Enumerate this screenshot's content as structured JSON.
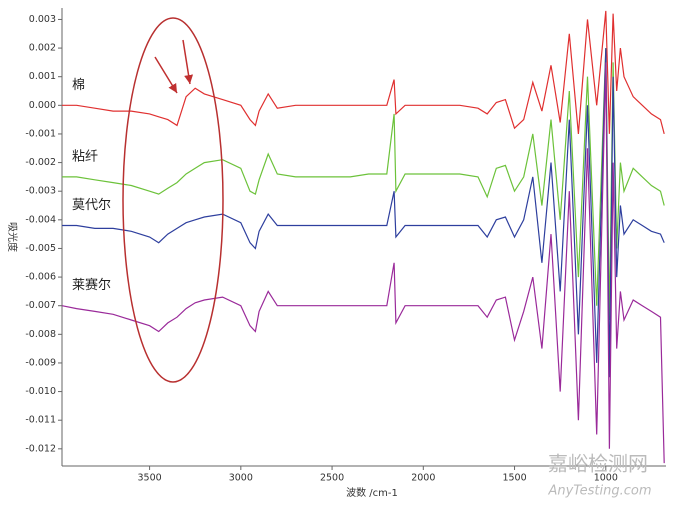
{
  "chart_data": {
    "type": "line",
    "xlabel": "波数 /cm-1",
    "ylabel": "吸光度",
    "x": [
      3980,
      3900,
      3800,
      3700,
      3600,
      3500,
      3450,
      3400,
      3350,
      3300,
      3250,
      3200,
      3100,
      3000,
      2950,
      2920,
      2900,
      2850,
      2800,
      2700,
      2600,
      2500,
      2400,
      2300,
      2200,
      2160,
      2150,
      2100,
      2000,
      1900,
      1800,
      1700,
      1650,
      1600,
      1550,
      1500,
      1450,
      1400,
      1350,
      1300,
      1250,
      1200,
      1150,
      1100,
      1050,
      1000,
      980,
      960,
      940,
      920,
      900,
      850,
      800,
      750,
      700,
      680
    ],
    "series": [
      {
        "name": "棉",
        "color": "#e03030",
        "values": [
          0.0,
          0.0,
          -0.0001,
          -0.0002,
          -0.0002,
          -0.0003,
          -0.0004,
          -0.0005,
          -0.0007,
          0.0003,
          0.0006,
          0.0004,
          0.0002,
          0.0,
          -0.0005,
          -0.0007,
          -0.0002,
          0.0004,
          -0.0001,
          0.0,
          0.0,
          0.0,
          0.0,
          0.0,
          0.0,
          0.0009,
          -0.0003,
          0.0,
          0.0,
          0.0,
          0.0,
          -0.0001,
          -0.0003,
          0.0001,
          0.0002,
          -0.0008,
          -0.0005,
          0.0008,
          -0.0002,
          0.0014,
          -0.0006,
          0.0025,
          -0.001,
          0.003,
          0.0,
          0.0033,
          -0.001,
          0.0032,
          0.0005,
          0.002,
          0.001,
          0.0003,
          0.0,
          -0.0003,
          -0.0005,
          -0.001
        ]
      },
      {
        "name": "粘纤",
        "color": "#6cc23a",
        "values": [
          -0.0025,
          -0.0025,
          -0.0026,
          -0.0027,
          -0.0028,
          -0.003,
          -0.0031,
          -0.0029,
          -0.0027,
          -0.0024,
          -0.0022,
          -0.002,
          -0.0019,
          -0.0022,
          -0.003,
          -0.0031,
          -0.0026,
          -0.0017,
          -0.0024,
          -0.0025,
          -0.0025,
          -0.0025,
          -0.0025,
          -0.0024,
          -0.0024,
          -0.0003,
          -0.003,
          -0.0024,
          -0.0024,
          -0.0024,
          -0.0024,
          -0.0025,
          -0.0032,
          -0.0022,
          -0.0021,
          -0.003,
          -0.0025,
          -0.001,
          -0.0035,
          -0.0005,
          -0.004,
          0.0005,
          -0.006,
          0.001,
          -0.007,
          0.002,
          -0.0075,
          0.0015,
          -0.005,
          -0.002,
          -0.003,
          -0.0022,
          -0.0025,
          -0.0028,
          -0.003,
          -0.0035
        ]
      },
      {
        "name": "莫代尔",
        "color": "#2e3f9e",
        "values": [
          -0.0042,
          -0.0042,
          -0.0043,
          -0.0043,
          -0.0044,
          -0.0046,
          -0.0048,
          -0.0045,
          -0.0043,
          -0.0041,
          -0.004,
          -0.0039,
          -0.0038,
          -0.0041,
          -0.0048,
          -0.005,
          -0.0044,
          -0.0038,
          -0.0042,
          -0.0042,
          -0.0042,
          -0.0042,
          -0.0042,
          -0.0042,
          -0.0042,
          -0.003,
          -0.0046,
          -0.0042,
          -0.0042,
          -0.0042,
          -0.0042,
          -0.0042,
          -0.0046,
          -0.004,
          -0.0039,
          -0.0046,
          -0.004,
          -0.0025,
          -0.0055,
          -0.002,
          -0.0065,
          -0.0005,
          -0.008,
          0.0,
          -0.009,
          0.002,
          -0.0095,
          0.001,
          -0.006,
          -0.0035,
          -0.0045,
          -0.004,
          -0.0042,
          -0.0044,
          -0.0045,
          -0.0048
        ]
      },
      {
        "name": "莱赛尔",
        "color": "#9a2a9a",
        "values": [
          -0.007,
          -0.0071,
          -0.0072,
          -0.0073,
          -0.0075,
          -0.0077,
          -0.0079,
          -0.0076,
          -0.0074,
          -0.0071,
          -0.0069,
          -0.0068,
          -0.0067,
          -0.007,
          -0.0077,
          -0.0079,
          -0.0072,
          -0.0065,
          -0.007,
          -0.007,
          -0.007,
          -0.007,
          -0.007,
          -0.007,
          -0.007,
          -0.0055,
          -0.0076,
          -0.007,
          -0.007,
          -0.007,
          -0.007,
          -0.007,
          -0.0074,
          -0.0068,
          -0.0067,
          -0.0082,
          -0.0072,
          -0.006,
          -0.0085,
          -0.0045,
          -0.01,
          -0.003,
          -0.011,
          -0.0015,
          -0.0115,
          0.0015,
          -0.012,
          -0.002,
          -0.0085,
          -0.0065,
          -0.0075,
          -0.0068,
          -0.007,
          -0.0072,
          -0.0074,
          -0.0125
        ]
      }
    ],
    "xlim": [
      3980,
      670
    ],
    "xticks": [
      3500,
      3000,
      2500,
      2000,
      1500,
      1000
    ],
    "ylim": [
      -0.0126,
      0.0034
    ],
    "yticks": [
      0.003,
      0.002,
      0.001,
      {
        "value": 0,
        "label": "0.000"
      },
      -0.001,
      -0.002,
      -0.003,
      -0.004,
      -0.005,
      -0.006,
      -0.007,
      -0.008,
      -0.009,
      {
        "value": -0.01,
        "label": "-0.010"
      },
      -0.011,
      -0.012
    ]
  },
  "watermark": {
    "title": "嘉峪检测网",
    "url": "AnyTesting.com"
  }
}
